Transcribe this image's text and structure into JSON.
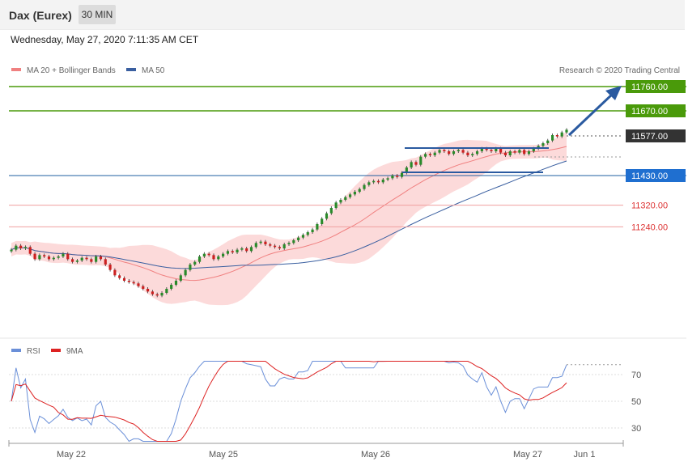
{
  "header": {
    "title": "Dax (Eurex)",
    "timeframe": "30 MIN"
  },
  "datetime": "Wednesday, May 27, 2020 7:11:35 AM CET",
  "legend": {
    "ma20": "MA 20 + Bollinger Bands",
    "ma50": "MA 50",
    "copyright": "Research © 2020 Trading Central"
  },
  "rsi_legend": {
    "rsi": "RSI",
    "ma9": "9MA"
  },
  "colors": {
    "resistance": "#4a9a0a",
    "support": "#1f5fa0",
    "current": "#333333",
    "levels_red": "#e06060",
    "ma20": "#f08080",
    "ma50": "#3a5fa0",
    "bollinger": "#fbd3d3",
    "candle_up": "#2a8a2a",
    "candle_down": "#cc2020",
    "rsi": "#6a8fd8",
    "rsi_ma": "#dd2222",
    "arrow": "#2a5aa0"
  },
  "chart_data": {
    "type": "candlestick",
    "instrument": "Dax (Eurex)",
    "interval": "30 MIN",
    "ylim": [
      10950,
      11800
    ],
    "x_ticks": [
      "May 22",
      "May 25",
      "May 26",
      "May 27",
      "Jun 1"
    ],
    "levels": [
      {
        "value": 11760,
        "label": "11760.00",
        "kind": "resistance"
      },
      {
        "value": 11670,
        "label": "11670.00",
        "kind": "resistance"
      },
      {
        "value": 11577,
        "label": "11577.00",
        "kind": "current"
      },
      {
        "value": 11430,
        "label": "11430.00",
        "kind": "support"
      },
      {
        "value": 11320,
        "label": "11320.00",
        "kind": "level"
      },
      {
        "value": 11240,
        "label": "11240.00",
        "kind": "level"
      }
    ],
    "close": [
      11155,
      11170,
      11160,
      11165,
      11140,
      11120,
      11135,
      11130,
      11120,
      11125,
      11130,
      11140,
      11120,
      11110,
      11115,
      11125,
      11120,
      11110,
      11130,
      11120,
      11100,
      11080,
      11060,
      11050,
      11040,
      11035,
      11030,
      11020,
      11010,
      11000,
      10990,
      10985,
      10995,
      11010,
      11025,
      11040,
      11060,
      11080,
      11100,
      11110,
      11130,
      11140,
      11135,
      11120,
      11130,
      11140,
      11150,
      11145,
      11155,
      11160,
      11150,
      11165,
      11180,
      11185,
      11175,
      11170,
      11165,
      11160,
      11175,
      11180,
      11190,
      11200,
      11210,
      11220,
      11230,
      11250,
      11270,
      11290,
      11310,
      11330,
      11340,
      11350,
      11360,
      11370,
      11380,
      11395,
      11405,
      11410,
      11405,
      11415,
      11420,
      11430,
      11425,
      11440,
      11460,
      11480,
      11470,
      11500,
      11510,
      11505,
      11515,
      11525,
      11520,
      11510,
      11520,
      11525,
      11515,
      11505,
      11510,
      11520,
      11530,
      11525,
      11520,
      11530,
      11515,
      11505,
      11520,
      11515,
      11525,
      11510,
      11520,
      11530,
      11540,
      11550,
      11560,
      11580,
      11575,
      11590,
      11600
    ],
    "rsi_ylim": [
      15,
      80
    ],
    "rsi_ticks": [
      30,
      50,
      70
    ]
  }
}
